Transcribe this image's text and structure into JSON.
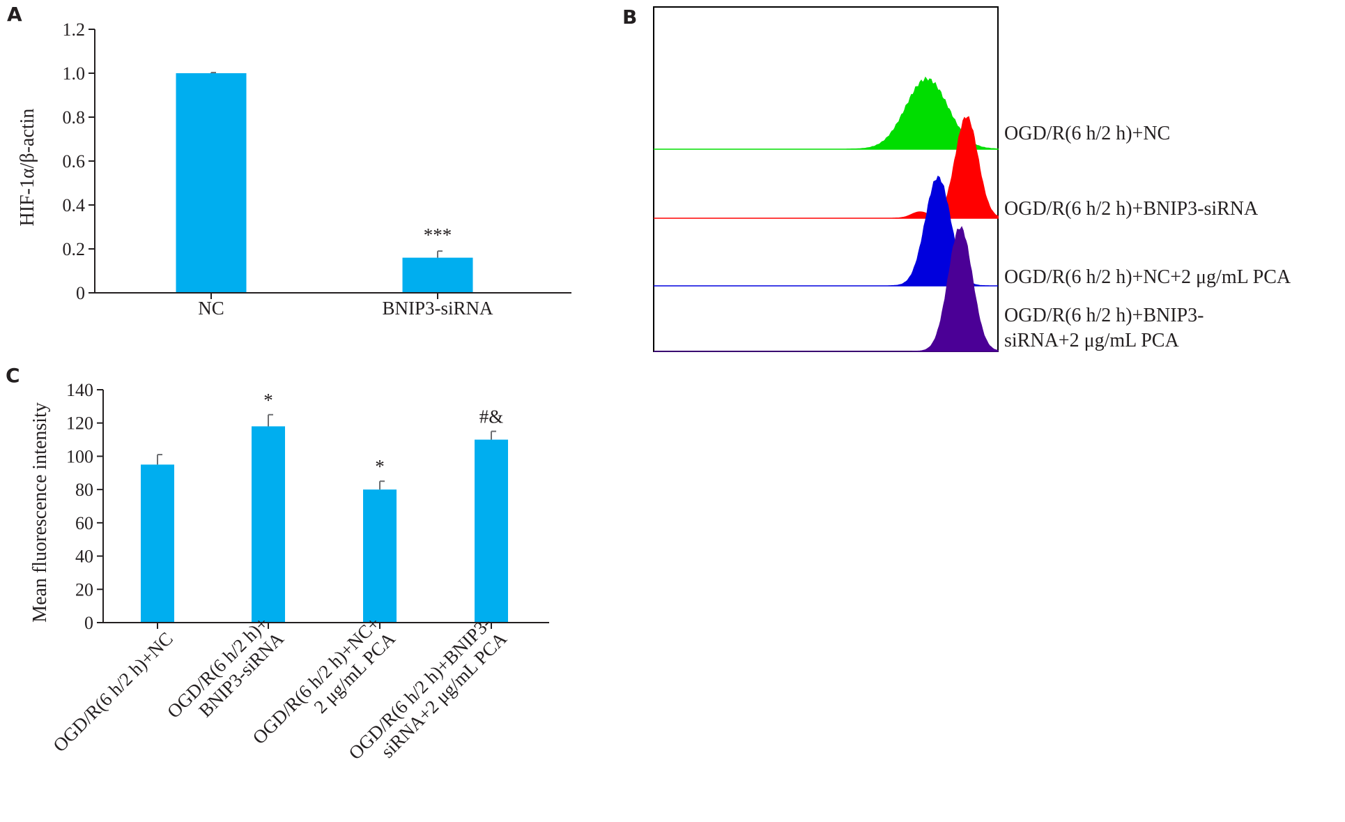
{
  "panel_letters": {
    "a": "A",
    "b": "B",
    "c": "C"
  },
  "colors": {
    "bar": "#00aeef",
    "axis": "#231f20",
    "error": "#6d6e71"
  },
  "chart_data": [
    {
      "panel": "A",
      "type": "bar",
      "ylabel": "HIF-1α/β-actin",
      "ylim": [
        0,
        1.2
      ],
      "yticks": [
        "0",
        "0.2",
        "0.4",
        "0.6",
        "0.8",
        "1.0",
        "1.2"
      ],
      "categories": [
        "NC",
        "BNIP3-siRNA"
      ],
      "values": [
        1.0,
        0.16
      ],
      "errors": [
        0.003,
        0.03
      ],
      "annotations": [
        "",
        "***"
      ],
      "grid": false
    },
    {
      "panel": "B",
      "type": "area",
      "series": [
        {
          "name": "OGD/R(6 h/2 h)+NC",
          "color": "#00dd00"
        },
        {
          "name": "OGD/R(6 h/2 h)+BNIP3-siRNA",
          "color": "#ff0000"
        },
        {
          "name": "OGD/R(6 h/2 h)+NC+2 μg/mL PCA",
          "color": "#0000dd"
        },
        {
          "name_lines": [
            "OGD/R(6 h/2 h)+BNIP3-",
            "siRNA+2 μg/mL PCA"
          ],
          "color": "#4b0096"
        }
      ]
    },
    {
      "panel": "C",
      "type": "bar",
      "ylabel": "Mean fluorescence intensity",
      "ylim": [
        0,
        140
      ],
      "yticks": [
        "0",
        "20",
        "40",
        "60",
        "80",
        "100",
        "120",
        "140"
      ],
      "categories": [
        [
          "OGD/R(6 h/2 h)+NC"
        ],
        [
          "OGD/R(6 h/2 h)+",
          "BNIP3-siRNA"
        ],
        [
          "OGD/R(6 h/2 h)+NC+",
          "2 μg/mL PCA"
        ],
        [
          "OGD/R(6 h/2 h)+BNIP3-",
          "siRNA+2 μg/mL PCA"
        ]
      ],
      "values": [
        95,
        118,
        80,
        110
      ],
      "errors": [
        6,
        7,
        5,
        5
      ],
      "annotations": [
        "",
        "*",
        "*",
        "#&"
      ],
      "grid": false
    }
  ]
}
